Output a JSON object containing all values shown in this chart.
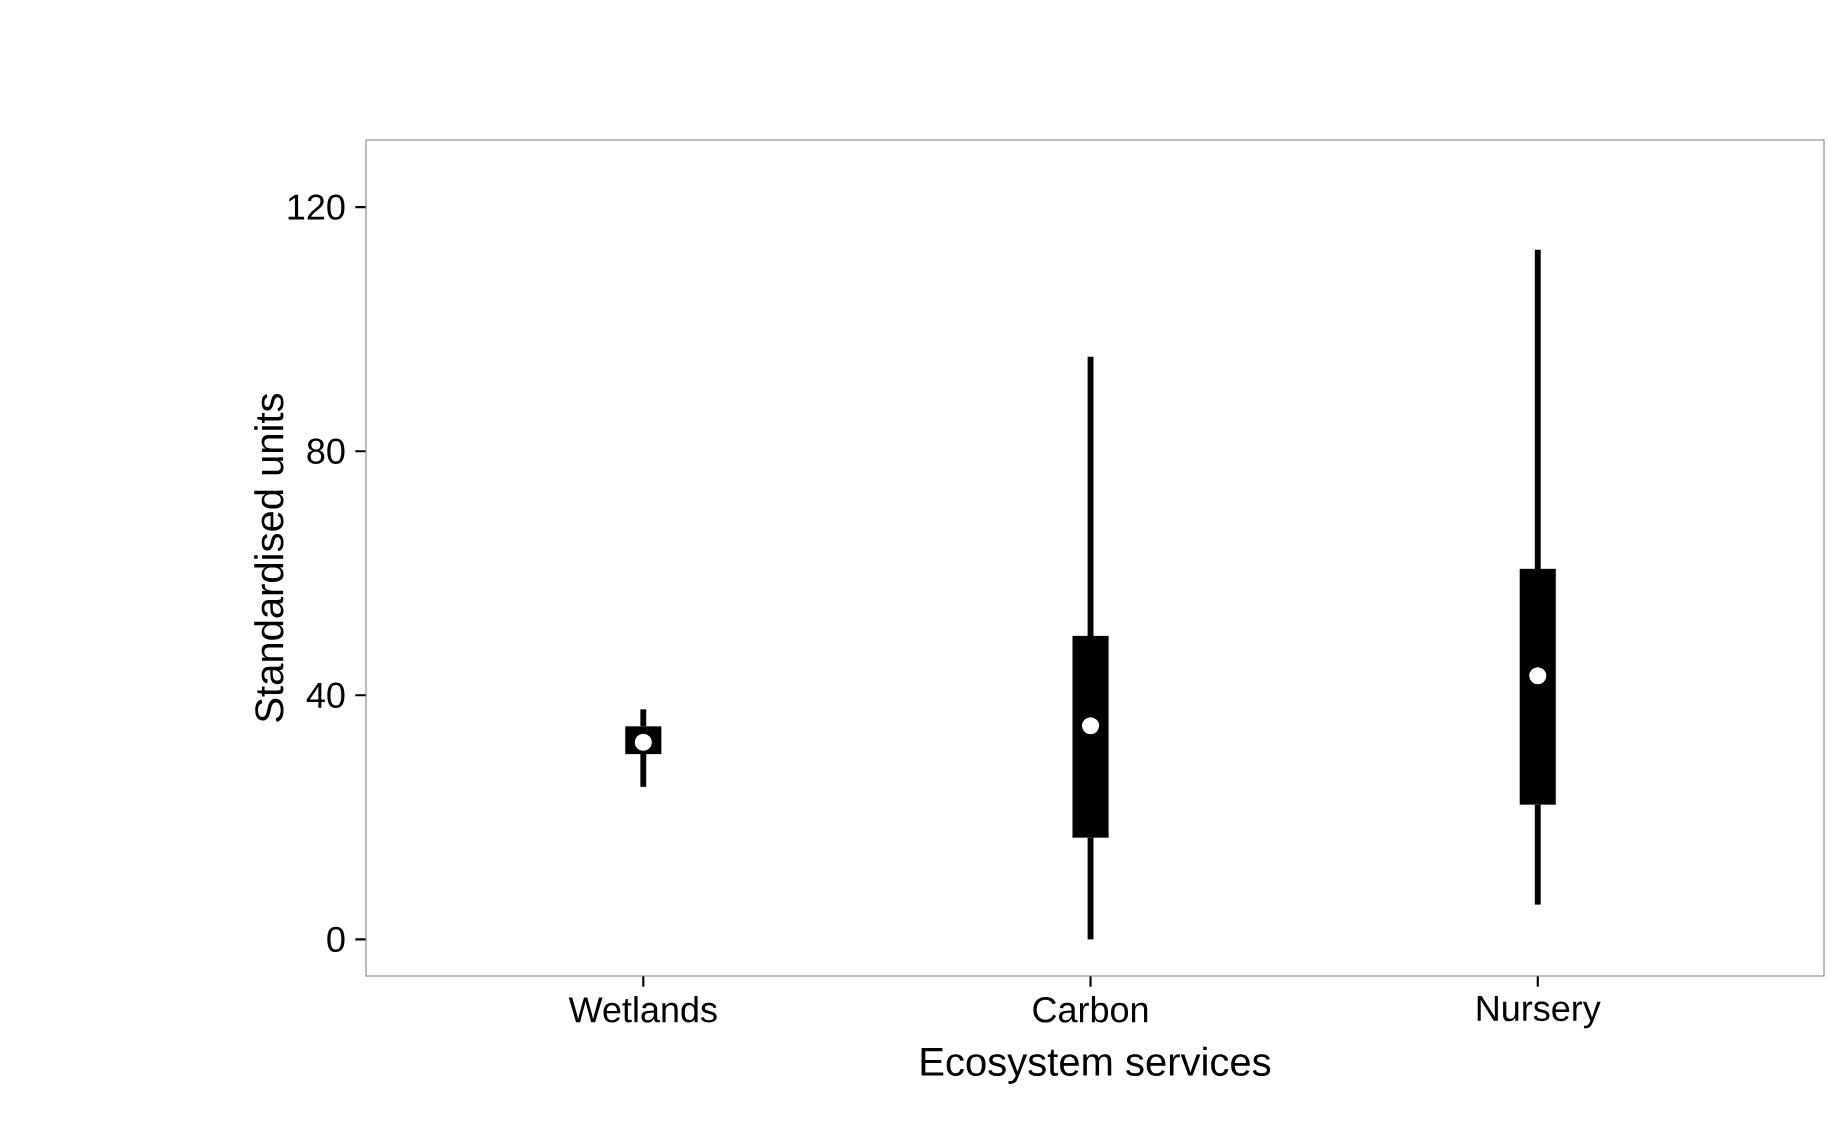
{
  "chart_data": {
    "type": "box",
    "xlabel": "Ecosystem services",
    "ylabel": "Standardised units",
    "categories": [
      "Wetlands",
      "Carbon",
      "Nursery"
    ],
    "boxes": [
      {
        "low": 25,
        "q1": 30.4,
        "median": 32.3,
        "q3": 34.9,
        "high": 37.7
      },
      {
        "low": 0,
        "q1": 16.7,
        "median": 35,
        "q3": 49.7,
        "high": 95.5
      },
      {
        "low": 5.7,
        "q1": 22.1,
        "median": 43.2,
        "q3": 60.7,
        "high": 113
      }
    ],
    "ylim": [
      -6,
      131
    ],
    "yticks": [
      0,
      40,
      80,
      120
    ]
  }
}
